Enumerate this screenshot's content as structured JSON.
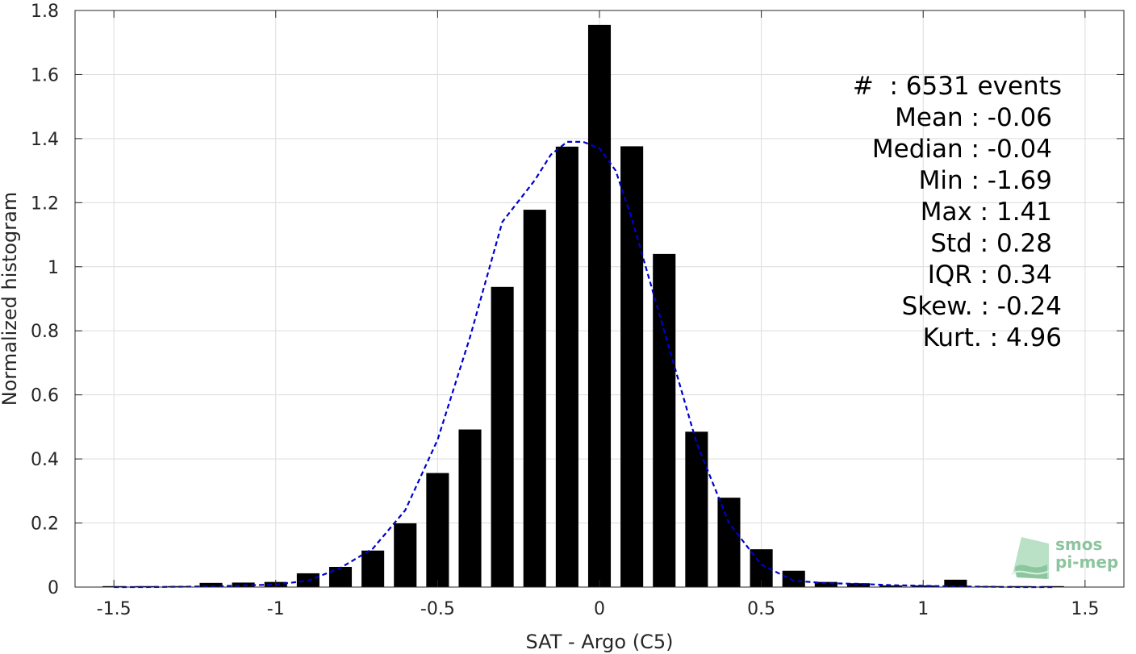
{
  "chart_data": {
    "type": "bar",
    "xlabel": "SAT - Argo (C5)",
    "ylabel": "Normalized histogram",
    "xlim": [
      -1.62,
      1.62
    ],
    "ylim": [
      0,
      1.8
    ],
    "xticks": [
      -1.5,
      -1,
      -0.5,
      0,
      0.5,
      1,
      1.5
    ],
    "xtick_labels": [
      "-1.5",
      "-1",
      "-0.5",
      "0",
      "0.5",
      "1",
      "1.5"
    ],
    "yticks": [
      0,
      0.2,
      0.4,
      0.6,
      0.8,
      1,
      1.2,
      1.4,
      1.6,
      1.8
    ],
    "ytick_labels": [
      "0",
      "0.2",
      "0.4",
      "0.6",
      "0.8",
      "1",
      "1.2",
      "1.4",
      "1.6",
      "1.8"
    ],
    "grid": true,
    "bar_color": "#000000",
    "fit_color": "#0000cc",
    "bar_width": 0.07,
    "x": [
      -1.5,
      -1.4,
      -1.3,
      -1.2,
      -1.1,
      -1.0,
      -0.9,
      -0.8,
      -0.7,
      -0.6,
      -0.5,
      -0.4,
      -0.3,
      -0.2,
      -0.1,
      0.0,
      0.1,
      0.2,
      0.3,
      0.4,
      0.5,
      0.6,
      0.7,
      0.8,
      0.9,
      1.0,
      1.1,
      1.2,
      1.3,
      1.4
    ],
    "values": [
      0.003,
      0.003,
      0.003,
      0.013,
      0.014,
      0.016,
      0.043,
      0.063,
      0.114,
      0.199,
      0.356,
      0.492,
      0.937,
      1.178,
      1.375,
      1.755,
      1.376,
      1.04,
      0.485,
      0.279,
      0.118,
      0.051,
      0.016,
      0.012,
      0.005,
      0.005,
      0.023,
      0.003,
      0.003,
      0.003
    ],
    "fit_curve": {
      "style": "dashed",
      "x": [
        -1.5,
        -1.4,
        -1.3,
        -1.2,
        -1.1,
        -1.0,
        -0.9,
        -0.8,
        -0.7,
        -0.6,
        -0.5,
        -0.4,
        -0.3,
        -0.2,
        -0.15,
        -0.1,
        -0.05,
        0.0,
        0.05,
        0.1,
        0.2,
        0.3,
        0.4,
        0.5,
        0.6,
        0.7,
        0.8,
        0.9,
        1.0,
        1.1,
        1.2,
        1.3,
        1.4
      ],
      "y": [
        0.0,
        0.0,
        0.001,
        0.002,
        0.005,
        0.008,
        0.02,
        0.06,
        0.12,
        0.24,
        0.46,
        0.78,
        1.14,
        1.27,
        1.35,
        1.39,
        1.39,
        1.37,
        1.3,
        1.15,
        0.8,
        0.45,
        0.2,
        0.07,
        0.02,
        0.012,
        0.01,
        0.006,
        0.004,
        0.002,
        0.001,
        0.0,
        0.0
      ]
    }
  },
  "stats": {
    "events": "#  : 6531 events",
    "mean": "Mean : -0.06",
    "median": "Median : -0.04",
    "min": "Min : -1.69",
    "max": "Max : 1.41",
    "std": "Std : 0.28",
    "iqr": "IQR : 0.34",
    "skew": "Skew. : -0.24",
    "kurt": "Kurt. : 4.96"
  },
  "logo": {
    "line1": "smos",
    "line2": "pi-mep",
    "color": "#8cc49e",
    "icon": "smos-pimep-logo"
  }
}
